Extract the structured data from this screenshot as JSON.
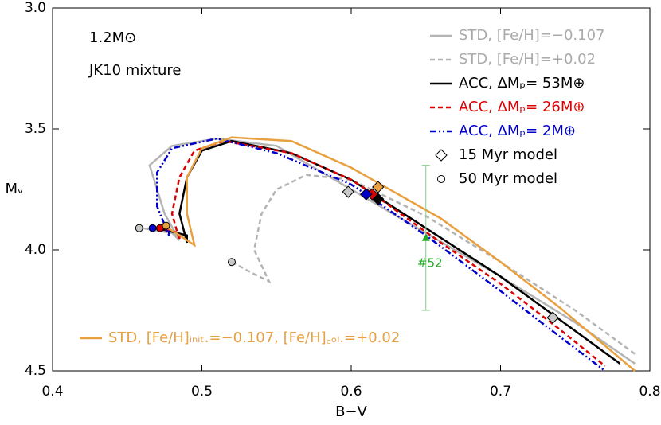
{
  "chart_data": {
    "type": "line",
    "xlabel": "B−V",
    "ylabel": "Mᵥ",
    "annotations": [
      "1.2M⊙",
      "JK10 mixture"
    ],
    "xlim": [
      0.4,
      0.8
    ],
    "xticks": [
      0.4,
      0.5,
      0.6,
      0.7,
      0.8
    ],
    "ylim": [
      3.0,
      4.5
    ],
    "y_inverted": true,
    "yticks": [
      {
        "value": 3,
        "label": "3.0"
      },
      3.5,
      {
        "value": 4,
        "label": "4.0"
      },
      4.5
    ],
    "legend": "upper right",
    "series": [
      {
        "name": "STD, [Fe/H]=−0.107",
        "color": "#b4b4b4",
        "dash": "solid",
        "x": [
          0.46,
          0.48,
          0.485,
          0.475,
          0.47,
          0.465,
          0.48,
          0.51,
          0.55,
          0.6,
          0.65,
          0.7,
          0.75,
          0.79
        ],
        "values": [
          3.91,
          3.93,
          3.96,
          3.85,
          3.75,
          3.65,
          3.57,
          3.54,
          3.57,
          3.75,
          3.93,
          4.11,
          4.3,
          4.47
        ]
      },
      {
        "name": "STD, [Fe/H]=+0.02",
        "color": "#b4b4b4",
        "dash": "dashed",
        "x": [
          0.52,
          0.535,
          0.545,
          0.535,
          0.54,
          0.55,
          0.57,
          0.6,
          0.65,
          0.7,
          0.75,
          0.79
        ],
        "values": [
          4.05,
          4.1,
          4.13,
          4.0,
          3.85,
          3.75,
          3.69,
          3.71,
          3.86,
          4.05,
          4.25,
          4.43
        ]
      },
      {
        "name": "ACC, ΔMₚ= 53M⊕",
        "color": "#000000",
        "dash": "solid",
        "x": [
          0.47,
          0.49,
          0.49,
          0.485,
          0.49,
          0.5,
          0.52,
          0.56,
          0.6,
          0.62,
          0.66,
          0.7,
          0.74,
          0.78
        ],
        "values": [
          3.91,
          3.94,
          3.97,
          3.85,
          3.7,
          3.59,
          3.55,
          3.6,
          3.71,
          3.79,
          3.95,
          4.11,
          4.29,
          4.47
        ]
      },
      {
        "name": "ACC, ΔMₚ= 26M⊕",
        "color": "#dd0000",
        "dash": "dashed",
        "x": [
          0.47,
          0.485,
          0.485,
          0.48,
          0.485,
          0.495,
          0.515,
          0.56,
          0.6,
          0.615,
          0.66,
          0.7,
          0.74,
          0.77
        ],
        "values": [
          3.91,
          3.93,
          3.96,
          3.85,
          3.7,
          3.59,
          3.55,
          3.6,
          3.71,
          3.77,
          3.97,
          4.14,
          4.33,
          4.48
        ]
      },
      {
        "name": "ACC, ΔMₚ=  2M⊕",
        "color": "#0000cc",
        "dash": "dashdot",
        "x": [
          0.467,
          0.478,
          0.478,
          0.47,
          0.47,
          0.48,
          0.51,
          0.55,
          0.6,
          0.61,
          0.65,
          0.7,
          0.74,
          0.77
        ],
        "values": [
          3.91,
          3.92,
          3.94,
          3.82,
          3.68,
          3.58,
          3.54,
          3.6,
          3.73,
          3.77,
          3.94,
          4.17,
          4.36,
          4.5
        ]
      },
      {
        "name": "STD, [Fe/H]ᵢₙᵢₜ.=−0.107, [Fe/H]꜀ₒₗ.=+0.02",
        "color": "#e8a040",
        "dash": "solid",
        "legend": "lower left",
        "x": [
          0.475,
          0.49,
          0.495,
          0.49,
          0.49,
          0.5,
          0.52,
          0.56,
          0.6,
          0.62,
          0.66,
          0.7,
          0.74,
          0.79
        ],
        "values": [
          3.9,
          3.96,
          3.98,
          3.85,
          3.7,
          3.58,
          3.535,
          3.55,
          3.66,
          3.73,
          3.87,
          4.05,
          4.24,
          4.5
        ]
      }
    ],
    "marker_legend": [
      {
        "name": "15 Myr model",
        "marker": "diamond"
      },
      {
        "name": "50 Myr model",
        "marker": "circle"
      }
    ],
    "points": [
      {
        "x": 0.598,
        "y": 3.76,
        "color": "#c8c8c8",
        "marker": "diamond"
      },
      {
        "x": 0.735,
        "y": 4.28,
        "color": "#c8c8c8",
        "marker": "diamond"
      },
      {
        "x": 0.618,
        "y": 3.79,
        "color": "#000000",
        "marker": "diamond"
      },
      {
        "x": 0.618,
        "y": 3.74,
        "color": "#e8a040",
        "marker": "diamond"
      },
      {
        "x": 0.614,
        "y": 3.77,
        "color": "#dd0000",
        "marker": "diamond"
      },
      {
        "x": 0.61,
        "y": 3.77,
        "color": "#0000cc",
        "marker": "diamond"
      },
      {
        "x": 0.458,
        "y": 3.91,
        "color": "#c8c8c8",
        "marker": "circle"
      },
      {
        "x": 0.52,
        "y": 4.05,
        "color": "#c8c8c8",
        "marker": "circle"
      },
      {
        "x": 0.467,
        "y": 3.91,
        "color": "#0000cc",
        "marker": "circle"
      },
      {
        "x": 0.472,
        "y": 3.91,
        "color": "#dd0000",
        "marker": "circle"
      },
      {
        "x": 0.476,
        "y": 3.9,
        "color": "#e8a040",
        "marker": "circle"
      }
    ],
    "star": {
      "label": "#52",
      "x": 0.65,
      "y": 3.95,
      "yerr": 0.3,
      "color": "#22aa22"
    }
  }
}
